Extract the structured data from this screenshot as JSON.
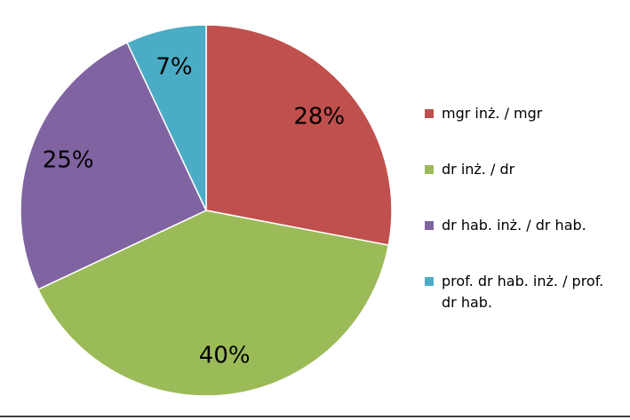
{
  "chart_data": {
    "type": "pie",
    "categories": [
      "mgr inż. / mgr",
      "dr inż. / dr",
      "dr hab. inż. / dr hab.",
      "prof. dr hab. inż. / prof. dr hab."
    ],
    "values": [
      28,
      40,
      25,
      7
    ],
    "value_labels": [
      "28%",
      "40%",
      "25%",
      "7%"
    ],
    "colors": [
      "#c0504d",
      "#9bbb59",
      "#8064a2",
      "#4bacc6"
    ],
    "legend": "right"
  }
}
